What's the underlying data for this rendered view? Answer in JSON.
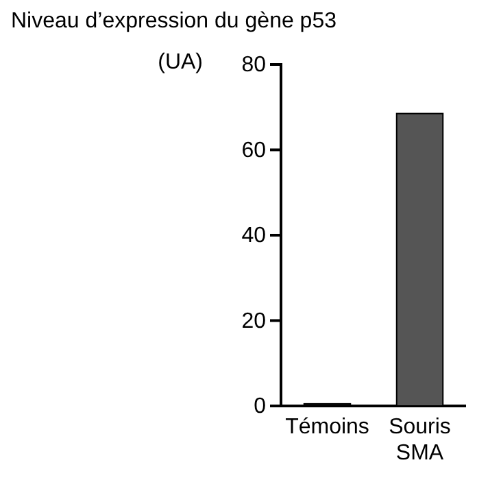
{
  "chart_data": {
    "type": "bar",
    "title": "Niveau d’expression du gène p53",
    "ylabel": "(UA)",
    "categories": [
      "Témoins",
      "Souris SMA"
    ],
    "values": [
      0.5,
      68.5
    ],
    "colors": [
      "#111111",
      "#555555"
    ],
    "ylim": [
      0,
      80
    ],
    "yticks": [
      0,
      20,
      40,
      60,
      80
    ]
  }
}
